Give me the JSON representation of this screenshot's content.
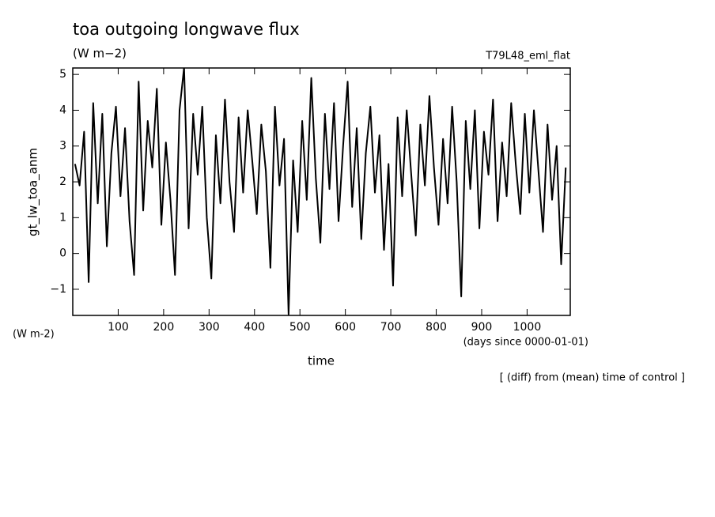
{
  "chart_data": {
    "type": "line",
    "title": "toa outgoing longwave flux",
    "subtitle": "(W m−2)",
    "run_label": "T79L48_eml_flat",
    "y_label": "gt_lw_toa_anm",
    "y_unit": "(W m-2)",
    "x_label": "time",
    "x_unit": "(days since 0000-01-01)",
    "note": "[ (diff) from (mean) time of control ]",
    "xlim": [
      0,
      1095
    ],
    "ylim": [
      -1.73,
      5.18
    ],
    "xticks": [
      100,
      200,
      300,
      400,
      500,
      600,
      700,
      800,
      900,
      1000
    ],
    "yticks": [
      {
        "value": -1,
        "label": "−1"
      },
      0,
      1,
      2,
      3,
      4,
      5
    ],
    "grid": false,
    "series": [
      {
        "name": "gt_lw_toa_anm",
        "color": "#000000",
        "x": [
          5,
          15,
          25,
          35,
          45,
          55,
          65,
          75,
          85,
          95,
          105,
          115,
          125,
          135,
          145,
          155,
          165,
          175,
          185,
          195,
          205,
          215,
          225,
          235,
          245,
          255,
          265,
          275,
          285,
          295,
          305,
          315,
          325,
          335,
          345,
          355,
          365,
          375,
          385,
          395,
          405,
          415,
          425,
          435,
          445,
          455,
          465,
          475,
          485,
          495,
          505,
          515,
          525,
          535,
          545,
          555,
          565,
          575,
          585,
          595,
          605,
          615,
          625,
          635,
          645,
          655,
          665,
          675,
          685,
          695,
          705,
          715,
          725,
          735,
          745,
          755,
          765,
          775,
          785,
          795,
          805,
          815,
          825,
          835,
          845,
          855,
          865,
          875,
          885,
          895,
          905,
          915,
          925,
          935,
          945,
          955,
          965,
          975,
          985,
          995,
          1005,
          1015,
          1025,
          1035,
          1045,
          1055,
          1065,
          1075,
          1085
        ],
        "values": [
          2.5,
          1.9,
          3.4,
          -0.8,
          4.2,
          1.4,
          3.9,
          0.2,
          2.8,
          4.1,
          1.6,
          3.5,
          0.9,
          -0.6,
          4.8,
          1.2,
          3.7,
          2.4,
          4.6,
          0.8,
          3.1,
          1.5,
          -0.6,
          4.0,
          5.2,
          0.7,
          3.9,
          2.2,
          4.1,
          1.0,
          -0.7,
          3.3,
          1.4,
          4.3,
          2.0,
          0.6,
          3.8,
          1.7,
          4.0,
          2.6,
          1.1,
          3.6,
          2.3,
          -0.4,
          4.1,
          1.9,
          3.2,
          -1.7,
          2.6,
          0.6,
          3.7,
          1.5,
          4.9,
          2.1,
          0.3,
          3.9,
          1.8,
          4.2,
          0.9,
          3.0,
          4.8,
          1.3,
          3.5,
          0.4,
          2.8,
          4.1,
          1.7,
          3.3,
          0.1,
          2.5,
          -0.9,
          3.8,
          1.6,
          4.0,
          2.2,
          0.5,
          3.6,
          1.9,
          4.4,
          2.4,
          0.8,
          3.2,
          1.4,
          4.1,
          2.0,
          -1.2,
          3.7,
          1.8,
          4.0,
          0.7,
          3.4,
          2.2,
          4.3,
          0.9,
          3.1,
          1.6,
          4.2,
          2.5,
          1.1,
          3.9,
          1.7,
          4.0,
          2.3,
          0.6,
          3.6,
          1.5,
          3.0,
          -0.3,
          2.4
        ]
      }
    ]
  }
}
